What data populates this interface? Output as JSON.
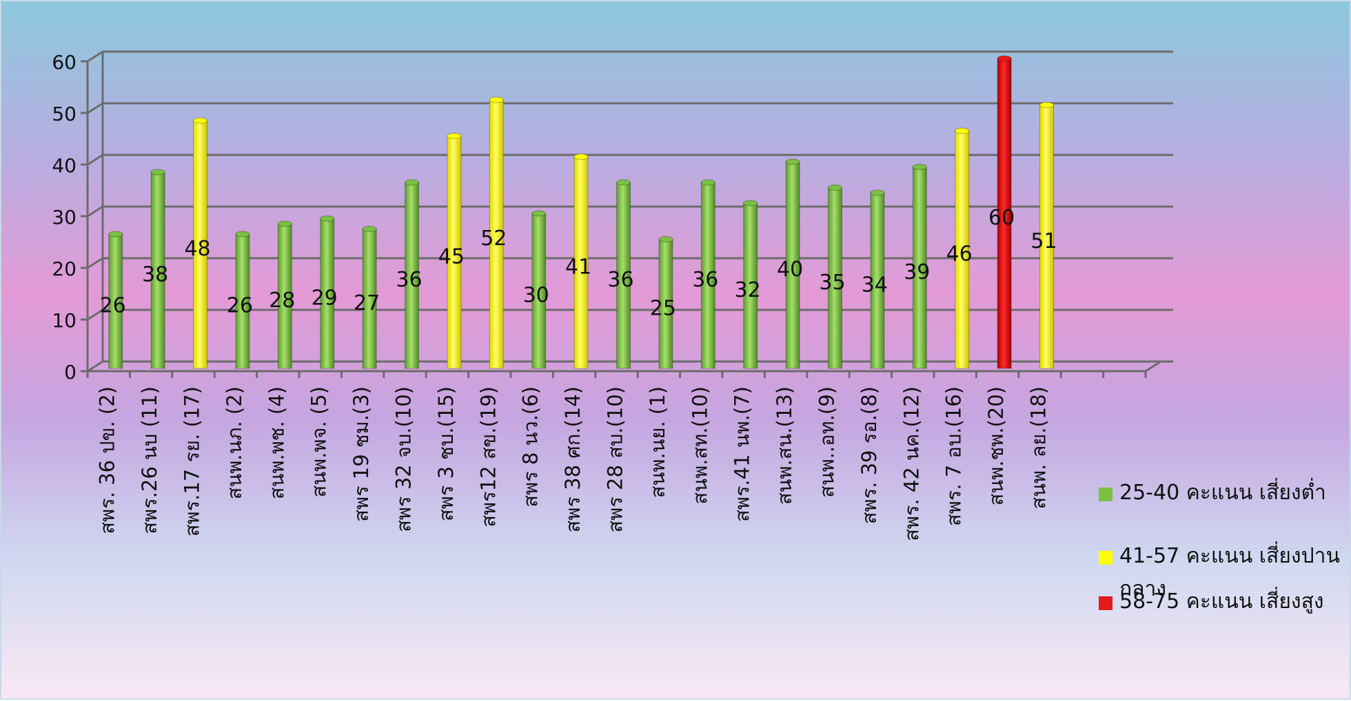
{
  "chart_data": {
    "type": "bar",
    "title": "",
    "xlabel": "",
    "ylabel": "",
    "ylim": [
      0,
      60
    ],
    "yticks": [
      "0",
      "10",
      "20",
      "30",
      "40",
      "50",
      "60"
    ],
    "categories": [
      "สพร. 36 ปข. (2)",
      "สพร.26 นบ (11)",
      "สพร.17 รย. (17)",
      "สนพ.นภ. (2)",
      "สนพ.พช. (4)",
      "สนพ.พจ. (5)",
      "สพร 19 ชม.(3)",
      "สพร 32 จบ.(10)",
      "สพร 3 ชบ.(15)",
      "สพร12 สข.(19)",
      "สพร 8 นว.(6)",
      "สพร 38 ศก.(14)",
      "สพร 28 สบ.(10)",
      "สนพ.นย. (1)",
      "สนพ.สท.(10)",
      "สพร.41 นพ.(7)",
      "สนพ.สน.(13)",
      "สนพ..อท.(9)",
      "สพร. 39 รอ.(8)",
      "สพร. 42 นค.(12)",
      "สพร. 7 อบ.(16)",
      "สนพ.ชพ.(20)",
      "สนพ. ลย.(18)"
    ],
    "values": [
      26,
      38,
      48,
      26,
      28,
      29,
      27,
      36,
      45,
      52,
      30,
      41,
      36,
      25,
      36,
      32,
      40,
      35,
      34,
      39,
      46,
      60,
      51
    ],
    "data_labels": [
      "26",
      "38",
      "48",
      "26",
      "28",
      "29",
      "27",
      "36",
      "45",
      "52",
      "30",
      "41",
      "36",
      "25",
      "36",
      "32",
      "40",
      "35",
      "34",
      "39",
      "46",
      "60",
      "51"
    ],
    "bar_color_group": [
      "low",
      "low",
      "mid",
      "low",
      "low",
      "low",
      "low",
      "low",
      "mid",
      "mid",
      "low",
      "mid",
      "low",
      "low",
      "low",
      "low",
      "low",
      "low",
      "low",
      "low",
      "mid",
      "high",
      "mid"
    ],
    "colors": {
      "low": "#7ac143",
      "mid": "#ffff00",
      "high": "#e51a1a",
      "grid": "#6b6b6b"
    },
    "legend_position": "right",
    "grid": true
  },
  "legend": {
    "items": [
      {
        "group": "low",
        "label": "25-40 คะแนน เสี่ยงต่ำ",
        "color": "#7ac143"
      },
      {
        "group": "mid",
        "label": "41-57 คะแนน เสี่ยงปานกลาง",
        "color": "#ffff00"
      },
      {
        "group": "high",
        "label": "58-75 คะแนน เสี่ยงสูง",
        "color": "#e51a1a"
      }
    ]
  }
}
